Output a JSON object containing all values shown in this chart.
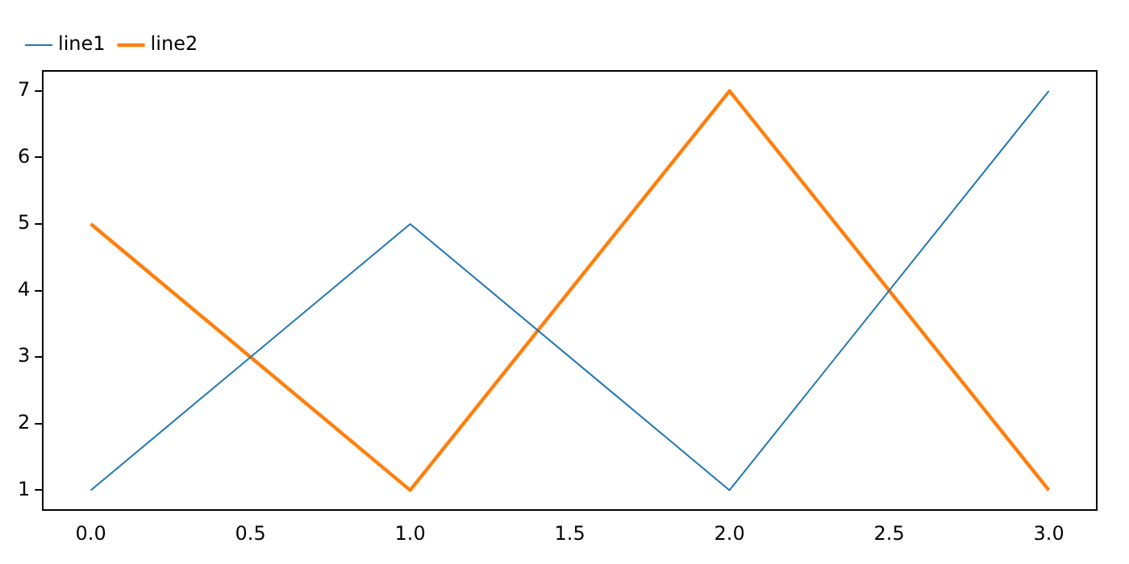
{
  "chart_data": {
    "type": "line",
    "x": [
      0,
      1,
      2,
      3
    ],
    "series": [
      {
        "name": "line1",
        "color": "#1f77b4",
        "values": [
          1,
          5,
          1,
          7
        ]
      },
      {
        "name": "line2",
        "color": "#ff7f0e",
        "values": [
          5,
          1,
          7,
          1
        ]
      }
    ],
    "xlim": [
      -0.15,
      3.15
    ],
    "xticks": [
      {
        "value": 0,
        "label": "0.0"
      },
      {
        "value": 0.5,
        "label": "0.5"
      },
      {
        "value": 1,
        "label": "1.0"
      },
      {
        "value": 1.5,
        "label": "1.5"
      },
      {
        "value": 2,
        "label": "2.0"
      },
      {
        "value": 2.5,
        "label": "2.5"
      },
      {
        "value": 3,
        "label": "3.0"
      }
    ],
    "ylim": [
      0.7,
      7.3
    ],
    "yticks": [
      1,
      2,
      3,
      4,
      5,
      6,
      7
    ],
    "grid": false,
    "legend": "top left",
    "marker": "none",
    "line_style": "solid"
  }
}
